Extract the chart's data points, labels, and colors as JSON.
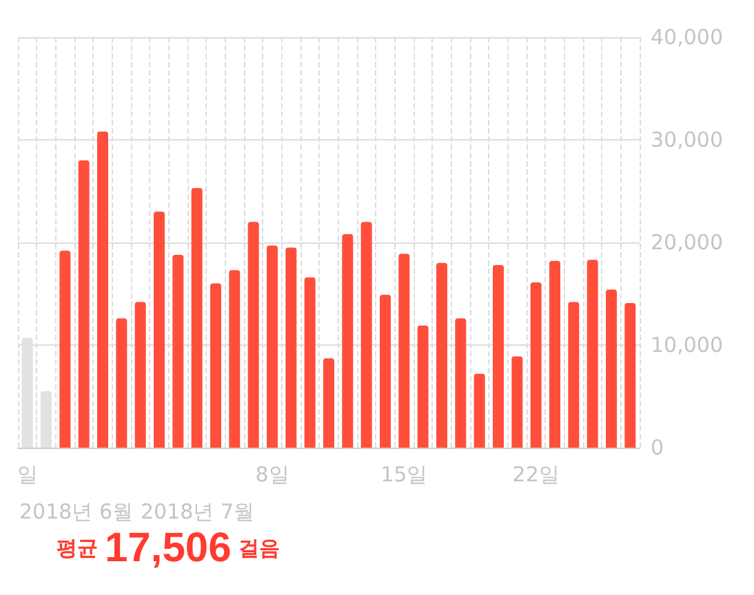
{
  "chart_data": {
    "type": "bar",
    "title": "평균 17,506 걸음",
    "categories": [
      "일",
      null,
      null,
      null,
      null,
      null,
      null,
      null,
      null,
      null,
      null,
      null,
      null,
      "8일",
      null,
      null,
      null,
      null,
      null,
      null,
      "15일",
      null,
      null,
      null,
      null,
      null,
      null,
      "22일",
      null,
      null,
      null,
      null,
      null
    ],
    "values": [
      10700,
      5500,
      19200,
      28000,
      30800,
      12600,
      14200,
      23000,
      18800,
      25300,
      16000,
      17300,
      22000,
      19700,
      19500,
      16600,
      8700,
      20800,
      22000,
      14900,
      18900,
      11900,
      18000,
      12600,
      7200,
      17800,
      8900,
      16100,
      18200,
      14200,
      18300,
      15400,
      14100
    ],
    "colors": [
      "#e2e2e2",
      "#e2e2e2",
      "#ff4f3a",
      "#ff4f3a",
      "#ff4f3a",
      "#ff4f3a",
      "#ff4f3a",
      "#ff4f3a",
      "#ff4f3a",
      "#ff4f3a",
      "#ff4f3a",
      "#ff4f3a",
      "#ff4f3a",
      "#ff4f3a",
      "#ff4f3a",
      "#ff4f3a",
      "#ff4f3a",
      "#ff4f3a",
      "#ff4f3a",
      "#ff4f3a",
      "#ff4f3a",
      "#ff4f3a",
      "#ff4f3a",
      "#ff4f3a",
      "#ff4f3a",
      "#ff4f3a",
      "#ff4f3a",
      "#ff4f3a",
      "#ff4f3a",
      "#ff4f3a",
      "#ff4f3a",
      "#ff4f3a",
      "#ff4f3a"
    ],
    "ylim": [
      0,
      40000
    ],
    "yticks": [
      0,
      {
        "value": 10000,
        "label": "10,000"
      },
      {
        "value": 20000,
        "label": "20,000"
      },
      {
        "value": 30000,
        "label": "30,000"
      },
      {
        "value": 40000,
        "label": "40,000"
      }
    ],
    "grid": true,
    "annotations": [
      "2018년 6월",
      "2018년 7월"
    ]
  }
}
